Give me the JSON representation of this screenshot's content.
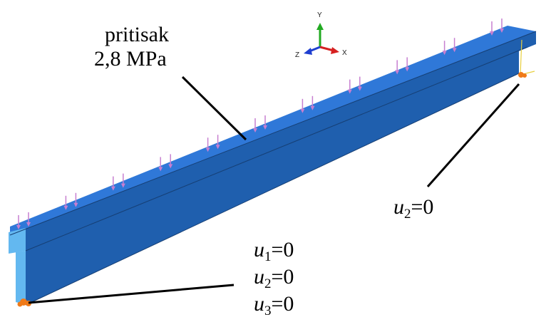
{
  "labels": {
    "load_line1": "pritisak",
    "load_line2": "2,8 MPa",
    "bc_right": {
      "var": "u",
      "sub": "2",
      "eq": "=0"
    },
    "bc_left": [
      {
        "var": "u",
        "sub": "1",
        "eq": "=0"
      },
      {
        "var": "u",
        "sub": "2",
        "eq": "=0"
      },
      {
        "var": "u",
        "sub": "3",
        "eq": "=0"
      }
    ]
  },
  "triad": {
    "y": "Y",
    "x": "X",
    "z": "Z"
  },
  "colors": {
    "beam_top": "#2f78d8",
    "beam_front": "#1f5fae",
    "beam_edge": "#163f74",
    "beam_end": "#63b8f0",
    "load_arrow": "#c77fd0",
    "support": "#f07a18",
    "axis_y": "#22aa22",
    "axis_x": "#d62020",
    "axis_z": "#1f3fd0"
  },
  "load_arrow_count": 22
}
